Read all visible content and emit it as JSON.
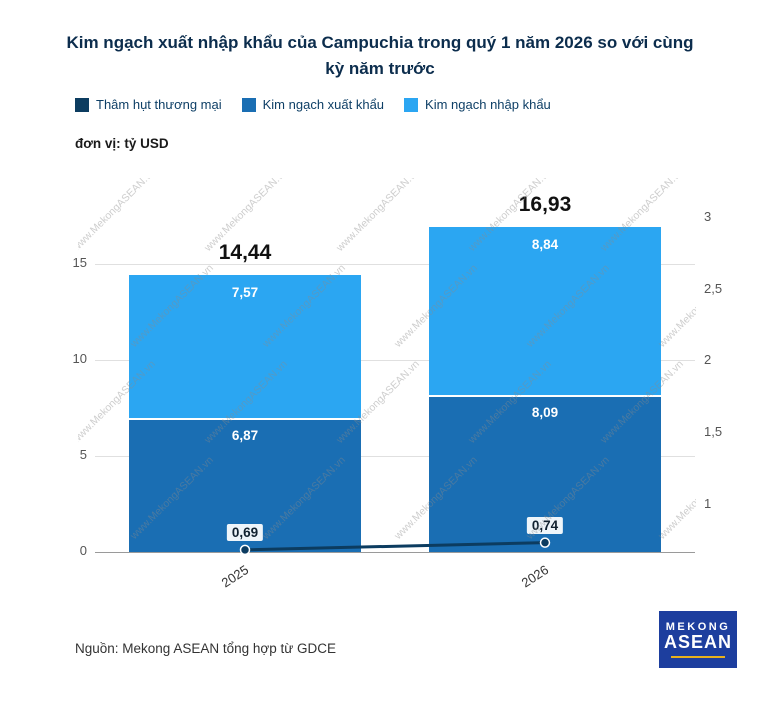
{
  "title": "Kim ngạch xuất nhập khẩu của Campuchia trong quý 1 năm 2026 so với cùng kỳ năm trước",
  "unit_label": "đơn vị: tỷ USD",
  "source": "Nguồn: Mekong ASEAN tổng hợp từ GDCE",
  "watermark": "www.MekongASEAN.vn",
  "logo": {
    "line1": "MEKONG",
    "line2": "ASEAN"
  },
  "colors": {
    "deficit": "#0c3c60",
    "export": "#1a6eb3",
    "import": "#2ba6f2",
    "title": "#0c2d4d",
    "grid": "#e0e0e0",
    "baseline": "#9a9a9a",
    "axis_text": "#555555"
  },
  "legend": [
    {
      "label": "Thâm hụt thương mại",
      "color": "#0c3c60"
    },
    {
      "label": "Kim ngạch xuất khẩu",
      "color": "#1a6eb3"
    },
    {
      "label": "Kim ngạch nhập khẩu",
      "color": "#2ba6f2"
    }
  ],
  "chart_data": {
    "type": "bar",
    "subtype": "stacked-bars-with-secondary-axis-line",
    "title": "Kim ngạch xuất nhập khẩu của Campuchia trong quý 1 năm 2026 so với cùng kỳ năm trước",
    "unit": "tỷ USD",
    "categories": [
      "2025",
      "2026"
    ],
    "series": [
      {
        "name": "Kim ngạch xuất khẩu",
        "type": "bar",
        "values": [
          6.87,
          8.09
        ],
        "labels": [
          "6,87",
          "8,09"
        ]
      },
      {
        "name": "Kim ngạch nhập khẩu",
        "type": "bar",
        "values": [
          7.57,
          8.84
        ],
        "labels": [
          "7,57",
          "8,84"
        ]
      },
      {
        "name": "Thâm hụt thương mại",
        "type": "line",
        "axis": "right",
        "values": [
          0.69,
          0.74
        ],
        "labels": [
          "0,69",
          "0,74"
        ]
      }
    ],
    "totals": {
      "values": [
        14.44,
        16.93
      ],
      "labels": [
        "14,44",
        "16,93"
      ]
    },
    "left_axis": {
      "ticks": [
        0,
        5,
        10,
        15
      ],
      "labels": [
        "0",
        "5",
        "10",
        "15"
      ],
      "range": [
        0,
        19.05
      ]
    },
    "right_axis": {
      "ticks": [
        1,
        1.5,
        2,
        2.5,
        3
      ],
      "labels": [
        "1",
        "1,5",
        "2",
        "2,5",
        "3"
      ],
      "range": [
        0.675,
        3.22
      ]
    },
    "legend_position": "top-left",
    "grid": true
  }
}
